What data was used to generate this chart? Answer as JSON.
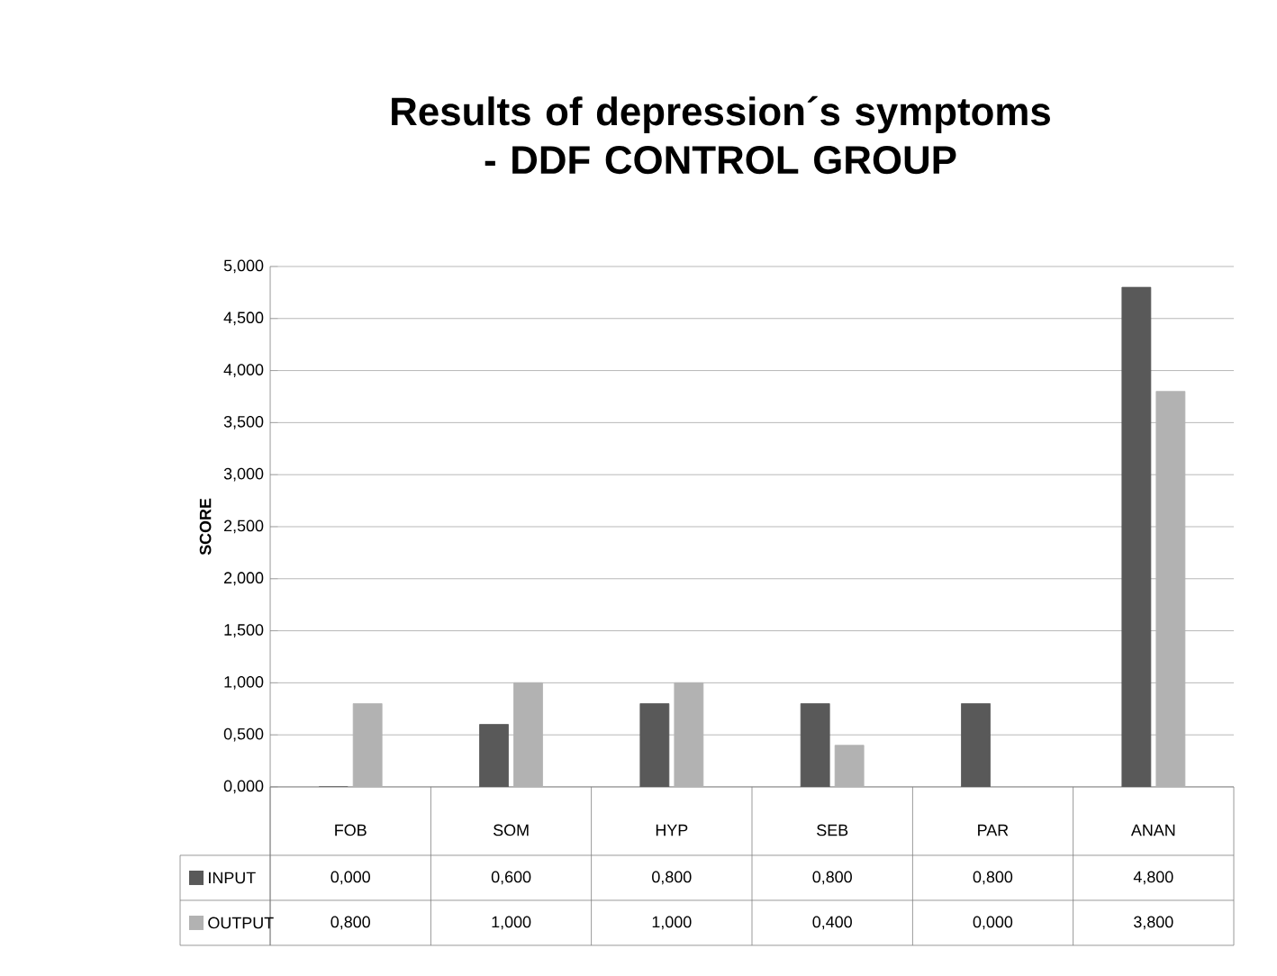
{
  "chart_data": {
    "type": "bar",
    "title": "Results of depression´s symptoms - DDF CONTROL GROUP",
    "ylabel": "SCORE",
    "categories": [
      "FOB",
      "SOM",
      "HYP",
      "SEB",
      "PAR",
      "ANAN"
    ],
    "series": [
      {
        "name": "INPUT",
        "color": "#595959",
        "values": [
          0,
          0.6,
          0.8,
          0.8,
          0.8,
          4.8
        ],
        "value_labels": [
          "0,000",
          "0,600",
          "0,800",
          "0,800",
          "0,800",
          "4,800"
        ]
      },
      {
        "name": "OUTPUT",
        "color": "#b2b2b2",
        "values": [
          0.8,
          1,
          1,
          0.4,
          0,
          3.8
        ],
        "value_labels": [
          "0,800",
          "1,000",
          "1,000",
          "0,400",
          "0,000",
          "3,800"
        ]
      }
    ],
    "ylim": [
      0,
      5
    ],
    "yticks": [
      {
        "value": 0,
        "label": "0,000"
      },
      {
        "value": 0.5,
        "label": "0,500"
      },
      {
        "value": 1,
        "label": "1,000"
      },
      {
        "value": 1.5,
        "label": "1,500"
      },
      {
        "value": 2,
        "label": "2,000"
      },
      {
        "value": 2.5,
        "label": "2,500"
      },
      {
        "value": 3,
        "label": "3,000"
      },
      {
        "value": 3.5,
        "label": "3,500"
      },
      {
        "value": 4,
        "label": "4,000"
      },
      {
        "value": 4.5,
        "label": "4,500"
      },
      {
        "value": 5,
        "label": "5,000"
      }
    ],
    "grid": "y",
    "legend": "bottom"
  }
}
